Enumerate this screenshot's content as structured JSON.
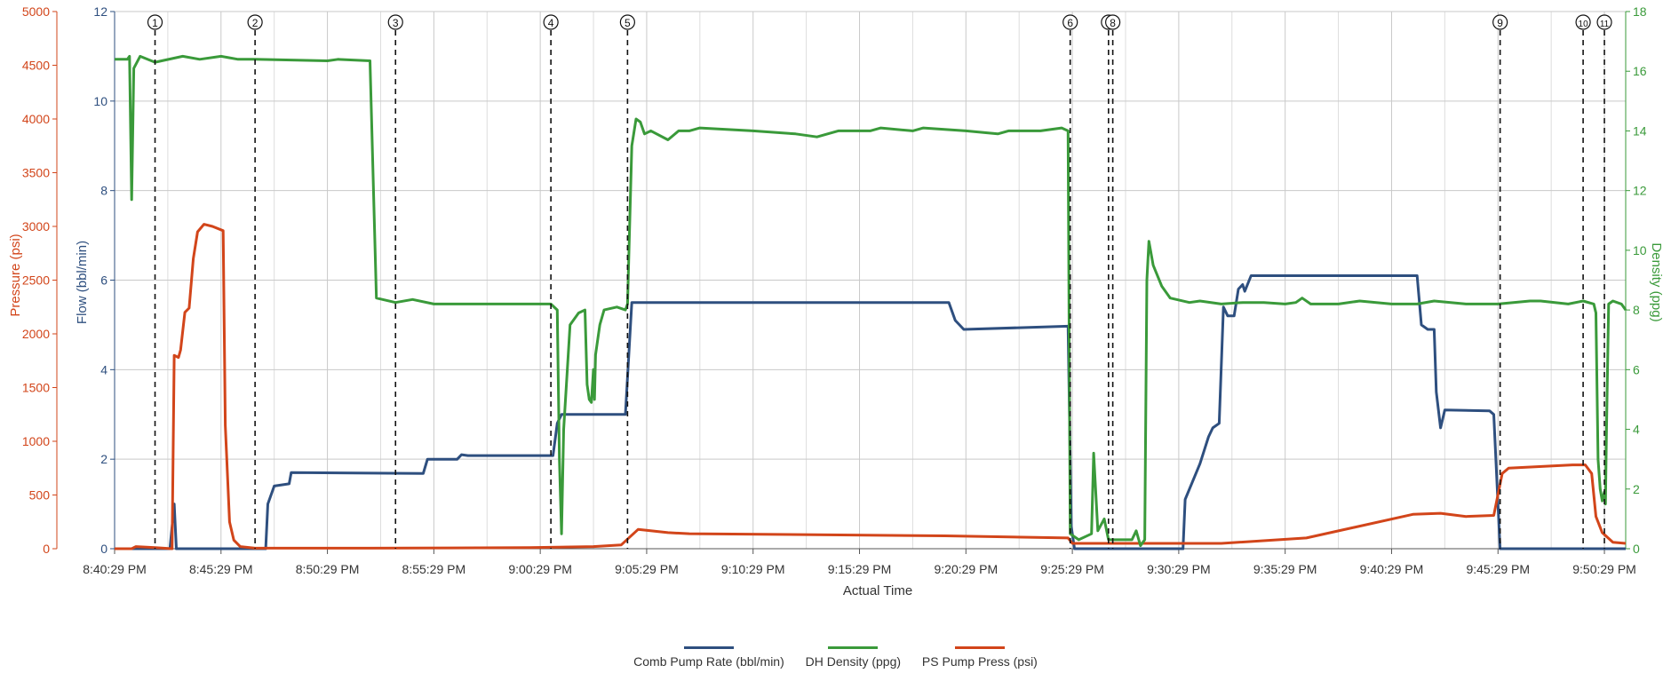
{
  "chart_data": {
    "type": "line",
    "xlabel": "Actual Time",
    "ylabel_left_pressure": "Pressure (psi)",
    "ylabel_left_flow": "Flow (bbl/min)",
    "ylabel_right": "Density (ppg)",
    "x_ticks": [
      "8:40:29 PM",
      "8:45:29 PM",
      "8:50:29 PM",
      "8:55:29 PM",
      "9:00:29 PM",
      "9:05:29 PM",
      "9:10:29 PM",
      "9:15:29 PM",
      "9:20:29 PM",
      "9:25:29 PM",
      "9:30:29 PM",
      "9:35:29 PM",
      "9:40:29 PM",
      "9:45:29 PM",
      "9:50:29 PM"
    ],
    "x_range_min": [
      0,
      71
    ],
    "pressure_axis": {
      "range": [
        0,
        5000
      ],
      "ticks": [
        0,
        500,
        1000,
        1500,
        2000,
        2500,
        3000,
        3500,
        4000,
        4500,
        5000
      ]
    },
    "flow_axis": {
      "range": [
        0,
        12
      ],
      "ticks": [
        0,
        2,
        4,
        6,
        8,
        10,
        12
      ]
    },
    "density_axis": {
      "range": [
        0,
        18
      ],
      "ticks": [
        0,
        2,
        4,
        6,
        8,
        10,
        12,
        14,
        16,
        18
      ]
    },
    "grid": true,
    "legend_position": "bottom-center",
    "events": [
      {
        "label": "1",
        "t": 1.9
      },
      {
        "label": "2",
        "t": 6.6
      },
      {
        "label": "3",
        "t": 13.2
      },
      {
        "label": "4",
        "t": 20.5
      },
      {
        "label": "5",
        "t": 24.1
      },
      {
        "label": "6",
        "t": 44.9
      },
      {
        "label": "7",
        "t": 46.7
      },
      {
        "label": "8",
        "t": 46.9
      },
      {
        "label": "9",
        "t": 65.1
      },
      {
        "label": "10",
        "t": 69.0
      },
      {
        "label": "11",
        "t": 70.0
      }
    ],
    "series": [
      {
        "name": "Comb Pump Rate (bbl/min)",
        "axis": "flow",
        "color": "#2e4f7f",
        "points": [
          [
            0,
            0
          ],
          [
            2.6,
            0
          ],
          [
            2.8,
            1.0
          ],
          [
            2.9,
            0
          ],
          [
            7.1,
            0
          ],
          [
            7.2,
            1.0
          ],
          [
            7.5,
            1.4
          ],
          [
            8.2,
            1.45
          ],
          [
            8.3,
            1.7
          ],
          [
            14.5,
            1.68
          ],
          [
            14.7,
            2.0
          ],
          [
            16.1,
            2.0
          ],
          [
            16.3,
            2.1
          ],
          [
            16.6,
            2.08
          ],
          [
            20.6,
            2.08
          ],
          [
            20.8,
            2.8
          ],
          [
            21.0,
            3.0
          ],
          [
            24.0,
            3.0
          ],
          [
            24.3,
            5.5
          ],
          [
            39.2,
            5.5
          ],
          [
            39.5,
            5.1
          ],
          [
            39.9,
            4.9
          ],
          [
            44.8,
            4.97
          ],
          [
            44.95,
            0.5
          ],
          [
            45.1,
            0
          ],
          [
            50.2,
            0
          ],
          [
            50.3,
            1.1
          ],
          [
            51.0,
            1.9
          ],
          [
            51.4,
            2.5
          ],
          [
            51.6,
            2.7
          ],
          [
            51.9,
            2.8
          ],
          [
            52.1,
            5.4
          ],
          [
            52.3,
            5.2
          ],
          [
            52.6,
            5.2
          ],
          [
            52.8,
            5.8
          ],
          [
            53.0,
            5.9
          ],
          [
            53.1,
            5.75
          ],
          [
            53.4,
            6.1
          ],
          [
            61.2,
            6.1
          ],
          [
            61.4,
            5.0
          ],
          [
            61.7,
            4.9
          ],
          [
            62.0,
            4.9
          ],
          [
            62.1,
            3.5
          ],
          [
            62.3,
            2.7
          ],
          [
            62.5,
            3.1
          ],
          [
            64.6,
            3.08
          ],
          [
            64.8,
            3.0
          ],
          [
            65.1,
            0
          ],
          [
            71,
            0
          ]
        ]
      },
      {
        "name": "DH Density (ppg)",
        "axis": "density",
        "color": "#3a9a3a",
        "points": [
          [
            0,
            16.4
          ],
          [
            0.6,
            16.4
          ],
          [
            0.7,
            16.5
          ],
          [
            0.8,
            11.7
          ],
          [
            0.9,
            16.1
          ],
          [
            1.2,
            16.5
          ],
          [
            1.9,
            16.3
          ],
          [
            3.2,
            16.5
          ],
          [
            4.0,
            16.4
          ],
          [
            5.0,
            16.5
          ],
          [
            5.8,
            16.4
          ],
          [
            6.6,
            16.4
          ],
          [
            10.0,
            16.35
          ],
          [
            10.5,
            16.4
          ],
          [
            12.0,
            16.35
          ],
          [
            12.3,
            8.4
          ],
          [
            13.2,
            8.25
          ],
          [
            14.0,
            8.35
          ],
          [
            15.0,
            8.2
          ],
          [
            17.0,
            8.2
          ],
          [
            18.0,
            8.2
          ],
          [
            20.5,
            8.2
          ],
          [
            20.8,
            8.0
          ],
          [
            20.9,
            3.0
          ],
          [
            21.0,
            0.5
          ],
          [
            21.1,
            4.0
          ],
          [
            21.4,
            7.5
          ],
          [
            21.8,
            7.9
          ],
          [
            22.1,
            8.0
          ],
          [
            22.2,
            5.5
          ],
          [
            22.3,
            5.0
          ],
          [
            22.4,
            4.9
          ],
          [
            22.5,
            6.0
          ],
          [
            22.55,
            5.0
          ],
          [
            22.6,
            6.5
          ],
          [
            22.8,
            7.5
          ],
          [
            23.0,
            8.0
          ],
          [
            23.6,
            8.1
          ],
          [
            24.0,
            8.0
          ],
          [
            24.1,
            8.2
          ],
          [
            24.3,
            13.5
          ],
          [
            24.5,
            14.4
          ],
          [
            24.7,
            14.3
          ],
          [
            24.9,
            13.9
          ],
          [
            25.2,
            14.0
          ],
          [
            26.0,
            13.7
          ],
          [
            26.5,
            14.0
          ],
          [
            27.0,
            14.0
          ],
          [
            27.5,
            14.1
          ],
          [
            30.0,
            14.0
          ],
          [
            32.0,
            13.9
          ],
          [
            33.0,
            13.8
          ],
          [
            34.0,
            14.0
          ],
          [
            35.5,
            14.0
          ],
          [
            36.0,
            14.1
          ],
          [
            37.5,
            14.0
          ],
          [
            38.0,
            14.1
          ],
          [
            40.0,
            14.0
          ],
          [
            41.5,
            13.9
          ],
          [
            42.0,
            14.0
          ],
          [
            43.5,
            14.0
          ],
          [
            44.5,
            14.1
          ],
          [
            44.8,
            14.0
          ],
          [
            44.9,
            0.5
          ],
          [
            45.3,
            0.3
          ],
          [
            45.9,
            0.5
          ],
          [
            46.0,
            3.2
          ],
          [
            46.2,
            0.6
          ],
          [
            46.5,
            1.0
          ],
          [
            46.7,
            0.3
          ],
          [
            47.8,
            0.3
          ],
          [
            48.0,
            0.6
          ],
          [
            48.2,
            0.1
          ],
          [
            48.4,
            0.3
          ],
          [
            48.5,
            9.0
          ],
          [
            48.6,
            10.3
          ],
          [
            48.8,
            9.5
          ],
          [
            49.2,
            8.8
          ],
          [
            49.6,
            8.4
          ],
          [
            50.5,
            8.25
          ],
          [
            51.0,
            8.3
          ],
          [
            52.0,
            8.2
          ],
          [
            53.0,
            8.25
          ],
          [
            54.0,
            8.25
          ],
          [
            55.0,
            8.2
          ],
          [
            55.5,
            8.25
          ],
          [
            55.8,
            8.4
          ],
          [
            56.2,
            8.2
          ],
          [
            57.5,
            8.2
          ],
          [
            58.5,
            8.3
          ],
          [
            60.0,
            8.2
          ],
          [
            61.2,
            8.2
          ],
          [
            62.0,
            8.3
          ],
          [
            63.5,
            8.2
          ],
          [
            65.0,
            8.2
          ],
          [
            66.5,
            8.3
          ],
          [
            67.0,
            8.3
          ],
          [
            68.3,
            8.2
          ],
          [
            69.0,
            8.3
          ],
          [
            69.5,
            8.2
          ],
          [
            69.6,
            7.9
          ],
          [
            69.7,
            3.0
          ],
          [
            69.8,
            2.0
          ],
          [
            69.9,
            1.6
          ],
          [
            70.0,
            1.9
          ],
          [
            70.05,
            1.5
          ],
          [
            70.1,
            4.0
          ],
          [
            70.2,
            8.2
          ],
          [
            70.4,
            8.3
          ],
          [
            70.8,
            8.2
          ],
          [
            71,
            8.0
          ]
        ]
      },
      {
        "name": "PS Pump Press (psi)",
        "axis": "pressure",
        "color": "#d2451a",
        "points": [
          [
            0,
            0
          ],
          [
            0.8,
            0
          ],
          [
            1.0,
            20
          ],
          [
            1.9,
            10
          ],
          [
            2.7,
            0
          ],
          [
            2.8,
            1800
          ],
          [
            3.0,
            1780
          ],
          [
            3.1,
            1850
          ],
          [
            3.3,
            2200
          ],
          [
            3.5,
            2240
          ],
          [
            3.7,
            2700
          ],
          [
            3.9,
            2950
          ],
          [
            4.2,
            3020
          ],
          [
            4.6,
            3000
          ],
          [
            5.1,
            2960
          ],
          [
            5.2,
            1150
          ],
          [
            5.4,
            250
          ],
          [
            5.6,
            80
          ],
          [
            5.9,
            20
          ],
          [
            6.6,
            5
          ],
          [
            12.0,
            5
          ],
          [
            19.5,
            10
          ],
          [
            22.5,
            20
          ],
          [
            23.8,
            35
          ],
          [
            24.6,
            180
          ],
          [
            26.0,
            150
          ],
          [
            27.0,
            140
          ],
          [
            39.0,
            120
          ],
          [
            44.8,
            100
          ],
          [
            45.0,
            50
          ],
          [
            52.0,
            50
          ],
          [
            56.0,
            100
          ],
          [
            61.0,
            320
          ],
          [
            62.3,
            330
          ],
          [
            63.5,
            300
          ],
          [
            64.8,
            310
          ],
          [
            65.2,
            700
          ],
          [
            65.5,
            750
          ],
          [
            68.5,
            780
          ],
          [
            69.1,
            780
          ],
          [
            69.4,
            700
          ],
          [
            69.6,
            300
          ],
          [
            69.9,
            150
          ],
          [
            70.4,
            60
          ],
          [
            71,
            50
          ]
        ]
      }
    ]
  }
}
